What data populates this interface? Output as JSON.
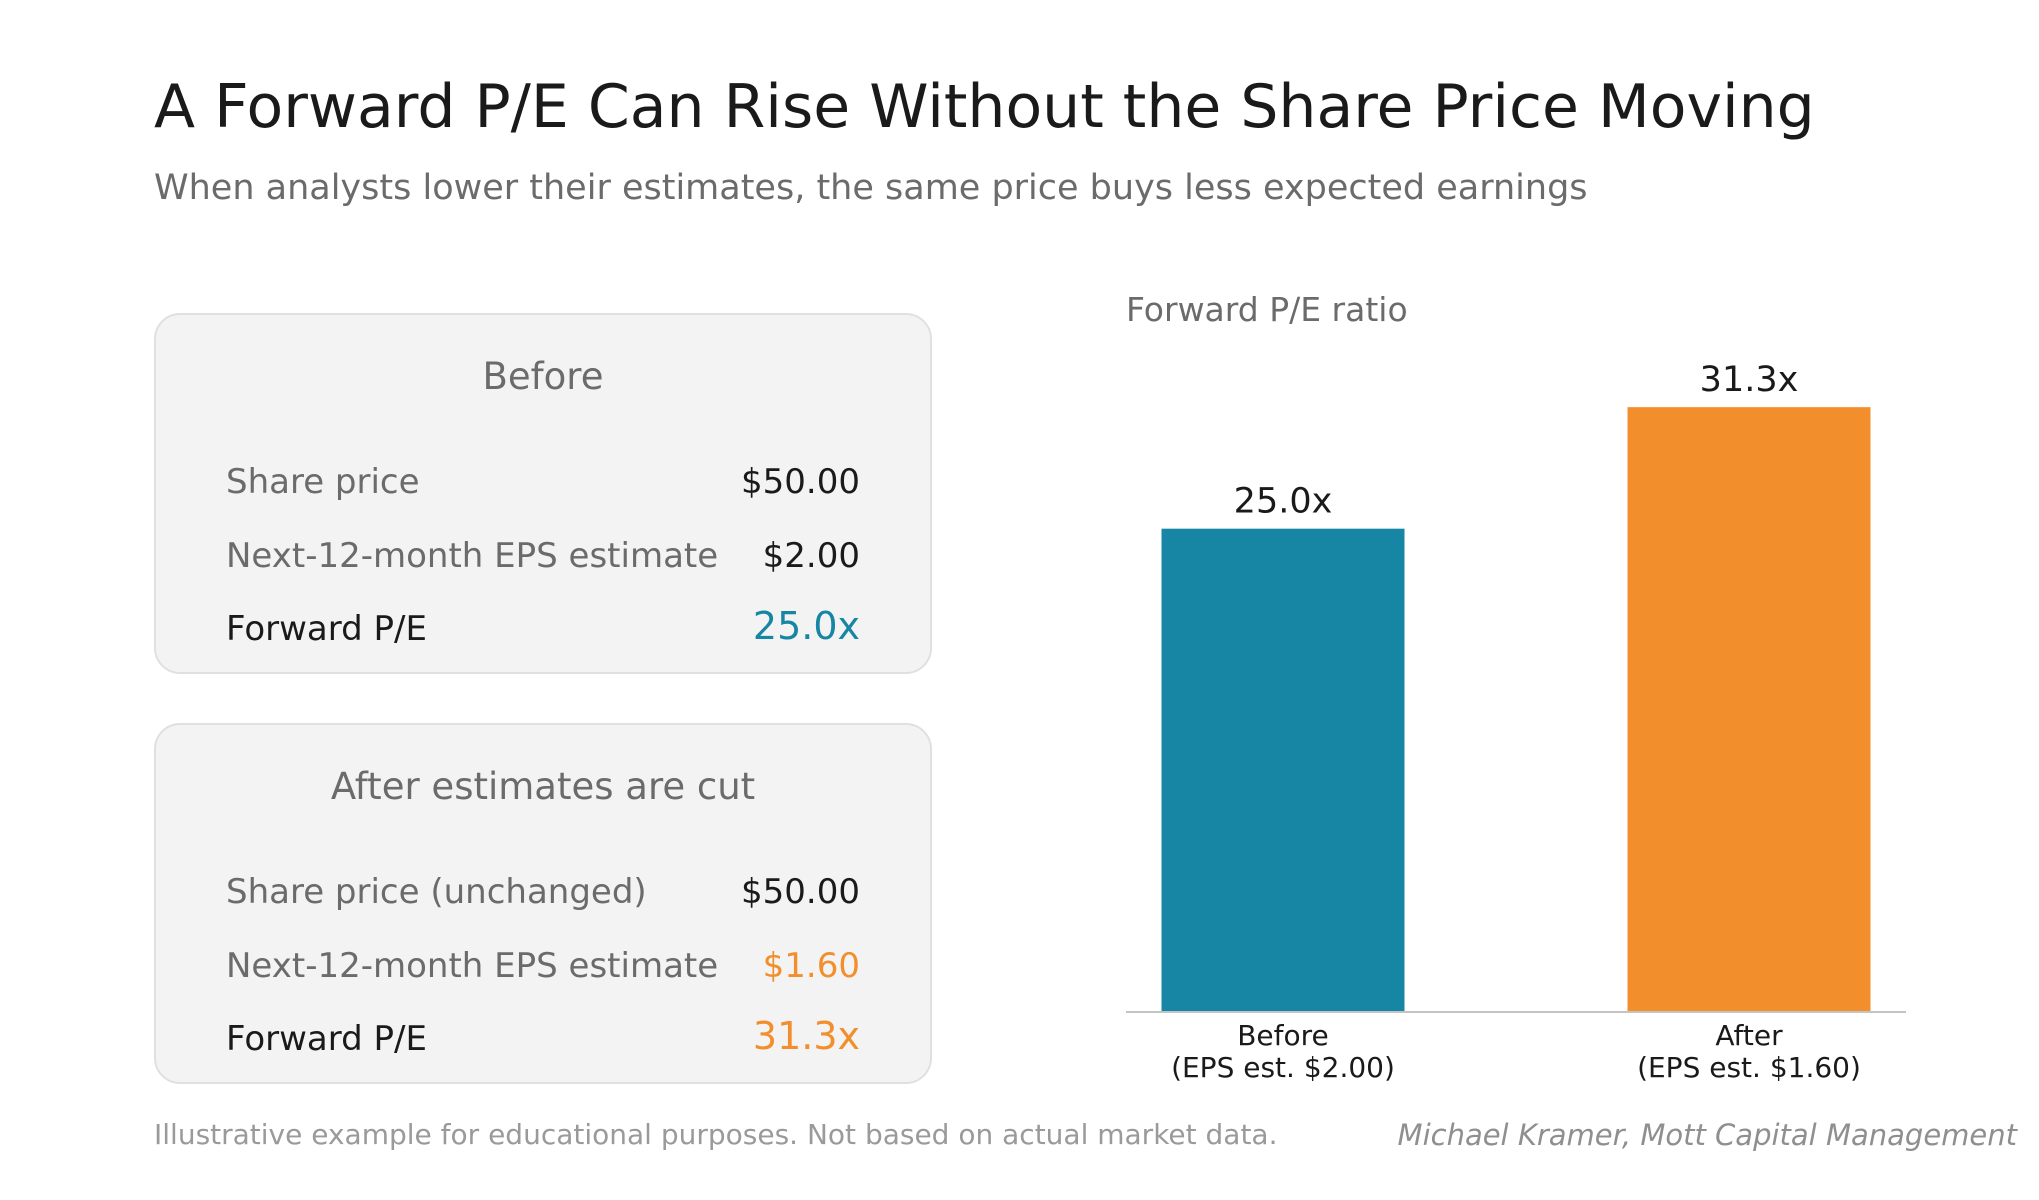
{
  "header": {
    "title": "A Forward P/E Can Rise Without the Share Price Moving",
    "subtitle": "When analysts lower their estimates, the same price buys less expected earnings"
  },
  "cards": {
    "before": {
      "heading": "Before",
      "rows": [
        {
          "label": "Share price",
          "value": "$50.00"
        },
        {
          "label": "Next-12-month EPS estimate",
          "value": "$2.00"
        },
        {
          "label": "Forward P/E",
          "value": "25.0x"
        }
      ]
    },
    "after": {
      "heading": "After estimates are cut",
      "rows": [
        {
          "label": "Share price (unchanged)",
          "value": "$50.00"
        },
        {
          "label": "Next-12-month EPS estimate",
          "value": "$1.60"
        },
        {
          "label": "Forward P/E",
          "value": "31.3x"
        }
      ]
    }
  },
  "colors": {
    "before": "#1686a4",
    "after": "#f28f2c",
    "text_dark": "#1a1a1a",
    "text_muted": "#6b6b6b",
    "card_bg": "#f3f3f3",
    "axis": "#c4c4c4"
  },
  "chart_data": {
    "type": "bar",
    "title": "Forward P/E ratio",
    "categories": [
      [
        "Before",
        "(EPS est. $2.00)"
      ],
      [
        "After",
        "(EPS est. $1.60)"
      ]
    ],
    "values": [
      25.0,
      31.3
    ],
    "data_labels": [
      "25.0x",
      "31.3x"
    ],
    "ylim": [
      0,
      32.5
    ],
    "grid": false,
    "legend": "none"
  },
  "footer": {
    "note": "Illustrative example for educational purposes. Not based on actual market data.",
    "credit": "Michael Kramer, Mott Capital Management"
  }
}
